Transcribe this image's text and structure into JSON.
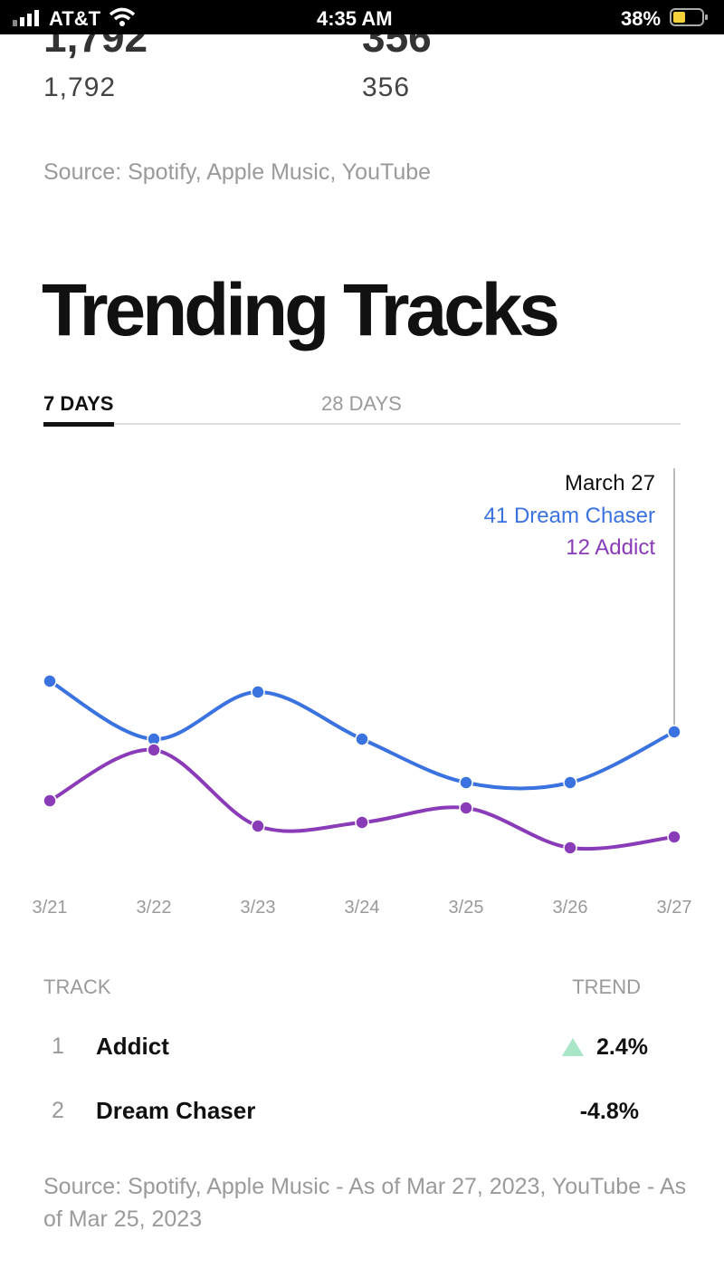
{
  "status_bar": {
    "carrier": "AT&T",
    "time": "4:35 AM",
    "battery": "38%"
  },
  "stats": [
    {
      "big": "1,792",
      "value": "1,792"
    },
    {
      "big": "356",
      "value": "356"
    }
  ],
  "stats_source": "Source: Spotify, Apple Music, YouTube",
  "section_title": "Trending Tracks",
  "tabs": [
    "7 DAYS",
    "28 DAYS"
  ],
  "chart_data": {
    "type": "line",
    "categories": [
      "3/21",
      "3/22",
      "3/23",
      "3/24",
      "3/25",
      "3/26",
      "3/27"
    ],
    "series": [
      {
        "name": "Dream Chaser",
        "color": "#3a72e0",
        "values": [
          55,
          39,
          52,
          39,
          27,
          27,
          41
        ]
      },
      {
        "name": "Addict",
        "color": "#8a3bb8",
        "values": [
          22,
          36,
          15,
          16,
          20,
          9,
          12
        ]
      }
    ],
    "tooltip": {
      "title": "March 27"
    }
  },
  "table": {
    "headers": [
      "TRACK",
      "TREND"
    ],
    "rows": [
      [
        "1",
        "Addict",
        "2.4%"
      ],
      [
        "2",
        "Dream Chaser",
        "-4.8%"
      ]
    ]
  },
  "footer": "Source: Spotify, Apple Music - As of Mar 27, 2023, YouTube - As of Mar 25, 2023"
}
